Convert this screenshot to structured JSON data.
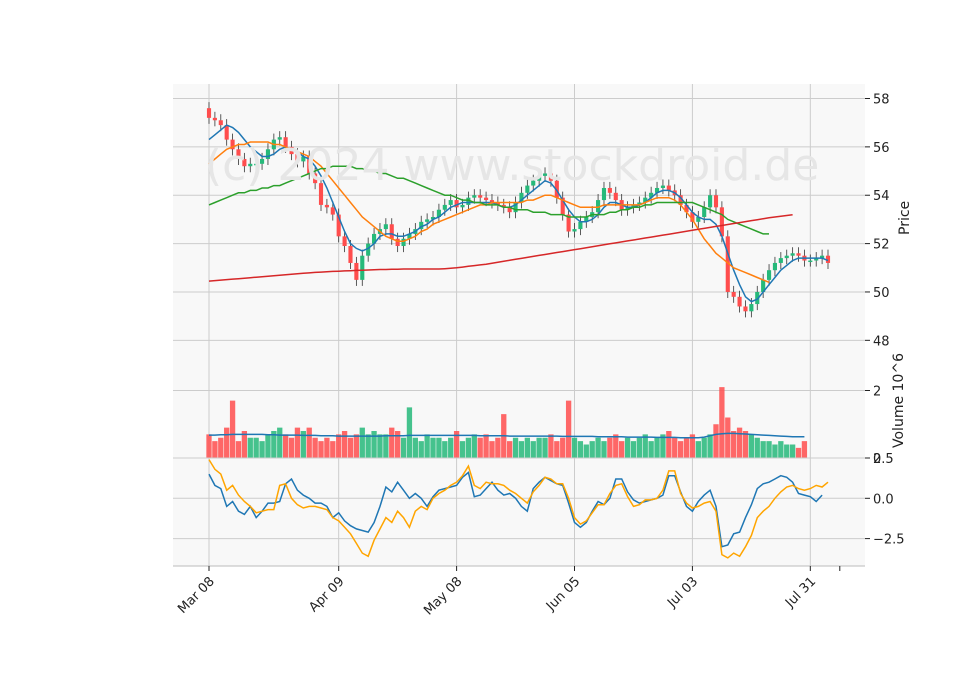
{
  "watermark": "(c) 2024 www.stockdroid.de",
  "colors": {
    "up": "#26b97a",
    "down": "#ff4d4d",
    "sma10": "#1f77b4",
    "sma20": "#ff7f0e",
    "sma50": "#2ca02c",
    "sma200": "#d62728",
    "osc_a": "#1f77b4",
    "osc_b": "#ffa500",
    "grid": "#cccccc",
    "panel_bg": "#f8f8f8"
  },
  "chart_data": [
    {
      "type": "candlestick",
      "title": "",
      "ylabel": "Price",
      "ylim": [
        47.6,
        58.6
      ],
      "yticks": [
        "48",
        "50",
        "52",
        "54",
        "56",
        "58"
      ],
      "x_tick_labels": [
        "Mar 08",
        "Apr 09",
        "May 08",
        "Jun 05",
        "Jul 03",
        "Jul 31"
      ],
      "x_tick_index": [
        0,
        22,
        42,
        62,
        82,
        102
      ],
      "grid": true,
      "ohlc_open": [
        57.6,
        57.2,
        57.1,
        56.9,
        56.3,
        55.9,
        55.5,
        55.2,
        55.3,
        55.3,
        55.5,
        55.9,
        56.3,
        56.4,
        56.0,
        55.7,
        55.4,
        55.6,
        54.9,
        54.5,
        53.6,
        53.5,
        53.2,
        52.3,
        51.9,
        51.2,
        50.5,
        51.5,
        52.0,
        52.4,
        52.6,
        52.8,
        52.2,
        51.9,
        52.2,
        52.4,
        52.6,
        52.9,
        53.0,
        53.1,
        53.4,
        53.6,
        53.8,
        53.5,
        53.6,
        53.9,
        54.0,
        53.9,
        53.8,
        53.7,
        53.6,
        53.5,
        53.3,
        53.7,
        54.1,
        54.4,
        54.6,
        54.8,
        54.9,
        54.6,
        53.9,
        53.2,
        52.5,
        52.6,
        52.9,
        53.1,
        53.3,
        53.8,
        54.3,
        54.1,
        53.8,
        53.4,
        53.5,
        53.6,
        53.7,
        53.9,
        54.1,
        54.3,
        54.4,
        54.2,
        54.0,
        53.6,
        53.3,
        52.9,
        53.1,
        53.5,
        54.0,
        53.5,
        52.3,
        50.0,
        49.8,
        49.4,
        49.2,
        49.5,
        50.0,
        50.5,
        50.9,
        51.2,
        51.4,
        51.5,
        51.6,
        51.5,
        51.3,
        51.3,
        51.4,
        51.5
      ],
      "ohlc_close": [
        57.2,
        57.1,
        56.9,
        56.3,
        55.9,
        55.5,
        55.2,
        55.3,
        55.3,
        55.5,
        55.9,
        56.3,
        56.4,
        56.0,
        55.7,
        55.4,
        55.6,
        54.9,
        54.5,
        53.6,
        53.5,
        53.2,
        52.3,
        51.9,
        51.2,
        50.5,
        51.5,
        52.0,
        52.4,
        52.6,
        52.8,
        52.2,
        51.9,
        52.2,
        52.4,
        52.6,
        52.9,
        53.0,
        53.1,
        53.4,
        53.6,
        53.8,
        53.5,
        53.6,
        53.9,
        54.0,
        53.9,
        53.8,
        53.7,
        53.6,
        53.5,
        53.3,
        53.7,
        54.1,
        54.4,
        54.6,
        54.8,
        54.9,
        54.6,
        53.9,
        53.2,
        52.5,
        52.6,
        52.9,
        53.1,
        53.3,
        53.8,
        54.3,
        54.1,
        53.8,
        53.4,
        53.5,
        53.6,
        53.7,
        53.9,
        54.1,
        54.3,
        54.4,
        54.2,
        54.0,
        53.6,
        53.3,
        52.9,
        53.1,
        53.5,
        54.0,
        53.5,
        52.3,
        50.0,
        49.8,
        49.4,
        49.2,
        49.5,
        50.0,
        50.5,
        50.9,
        51.2,
        51.4,
        51.5,
        51.6,
        51.5,
        51.3,
        51.3,
        51.4,
        51.5,
        51.2
      ],
      "series": [
        {
          "name": "SMA 10",
          "values": [
            56.3,
            56.5,
            56.7,
            56.9,
            56.8,
            56.6,
            56.3,
            56.0,
            55.8,
            55.6,
            55.6,
            55.7,
            55.9,
            56.0,
            55.9,
            55.8,
            55.6,
            55.5,
            55.2,
            54.8,
            54.3,
            53.7,
            53.1,
            52.5,
            52.0,
            51.8,
            51.7,
            51.8,
            52.0,
            52.3,
            52.4,
            52.4,
            52.3,
            52.3,
            52.4,
            52.5,
            52.7,
            52.8,
            53.0,
            53.1,
            53.3,
            53.5,
            53.6,
            53.7,
            53.7,
            53.7,
            53.7,
            53.7,
            53.7,
            53.6,
            53.5,
            53.5,
            53.6,
            53.8,
            54.0,
            54.2,
            54.4,
            54.6,
            54.5,
            54.2,
            53.8,
            53.4,
            53.1,
            52.9,
            52.9,
            53.0,
            53.2,
            53.5,
            53.7,
            53.7,
            53.6,
            53.5,
            53.5,
            53.6,
            53.7,
            53.9,
            54.1,
            54.2,
            54.2,
            54.1,
            53.9,
            53.6,
            53.3,
            53.1,
            53.0,
            53.0,
            52.8,
            52.3,
            51.6,
            50.9,
            50.3,
            49.8,
            49.6,
            49.7,
            50.0,
            50.3,
            50.6,
            50.9,
            51.1,
            51.3,
            51.4,
            51.4,
            51.4,
            51.4,
            51.4,
            51.3
          ]
        },
        {
          "name": "SMA 20",
          "values": [
            55.3,
            55.5,
            55.7,
            55.9,
            56.0,
            56.1,
            56.1,
            56.2,
            56.2,
            56.2,
            56.2,
            56.1,
            56.1,
            56.0,
            55.9,
            55.8,
            55.7,
            55.6,
            55.4,
            55.2,
            54.9,
            54.6,
            54.3,
            54.0,
            53.7,
            53.4,
            53.1,
            52.9,
            52.7,
            52.5,
            52.3,
            52.2,
            52.1,
            52.1,
            52.2,
            52.3,
            52.5,
            52.6,
            52.8,
            52.9,
            53.0,
            53.1,
            53.2,
            53.3,
            53.4,
            53.5,
            53.6,
            53.6,
            53.7,
            53.7,
            53.7,
            53.7,
            53.7,
            53.7,
            53.8,
            53.8,
            53.9,
            54.0,
            54.0,
            53.9,
            53.8,
            53.7,
            53.6,
            53.5,
            53.5,
            53.5,
            53.5,
            53.6,
            53.6,
            53.6,
            53.6,
            53.6,
            53.6,
            53.6,
            53.7,
            53.8,
            53.9,
            53.9,
            53.9,
            53.8,
            53.6,
            53.3,
            53.0,
            52.6,
            52.2,
            51.9,
            51.6,
            51.4,
            51.2,
            51.0,
            50.9,
            50.8,
            50.7,
            50.6,
            50.5,
            50.4
          ]
        },
        {
          "name": "SMA 50",
          "values": [
            53.6,
            53.7,
            53.8,
            53.9,
            54.0,
            54.1,
            54.1,
            54.2,
            54.2,
            54.3,
            54.3,
            54.4,
            54.4,
            54.5,
            54.6,
            54.7,
            54.8,
            54.9,
            55.0,
            55.1,
            55.1,
            55.2,
            55.2,
            55.2,
            55.2,
            55.1,
            55.1,
            55.0,
            55.0,
            54.9,
            54.9,
            54.8,
            54.7,
            54.7,
            54.6,
            54.5,
            54.4,
            54.3,
            54.2,
            54.1,
            54.0,
            54.0,
            53.9,
            53.8,
            53.8,
            53.7,
            53.7,
            53.6,
            53.6,
            53.6,
            53.5,
            53.5,
            53.4,
            53.4,
            53.4,
            53.3,
            53.3,
            53.3,
            53.2,
            53.2,
            53.2,
            53.1,
            53.1,
            53.1,
            53.1,
            53.2,
            53.2,
            53.2,
            53.3,
            53.3,
            53.4,
            53.4,
            53.5,
            53.5,
            53.6,
            53.6,
            53.7,
            53.7,
            53.7,
            53.7,
            53.7,
            53.7,
            53.7,
            53.6,
            53.5,
            53.4,
            53.3,
            53.2,
            53.0,
            52.9,
            52.8,
            52.7,
            52.6,
            52.5,
            52.4,
            52.4
          ]
        },
        {
          "name": "SMA 200",
          "values": [
            50.45,
            50.47,
            50.49,
            50.51,
            50.53,
            50.55,
            50.57,
            50.59,
            50.61,
            50.63,
            50.65,
            50.67,
            50.69,
            50.71,
            50.73,
            50.75,
            50.77,
            50.79,
            50.81,
            50.82,
            50.84,
            50.85,
            50.86,
            50.87,
            50.88,
            50.89,
            50.9,
            50.91,
            50.92,
            50.93,
            50.93,
            50.94,
            50.94,
            50.95,
            50.95,
            50.95,
            50.95,
            50.95,
            50.95,
            50.95,
            50.96,
            50.98,
            51.0,
            51.03,
            51.06,
            51.09,
            51.12,
            51.15,
            51.19,
            51.23,
            51.27,
            51.31,
            51.35,
            51.39,
            51.43,
            51.47,
            51.51,
            51.55,
            51.59,
            51.63,
            51.67,
            51.71,
            51.75,
            51.79,
            51.83,
            51.87,
            51.91,
            51.95,
            51.99,
            52.03,
            52.07,
            52.11,
            52.15,
            52.19,
            52.23,
            52.27,
            52.31,
            52.35,
            52.39,
            52.43,
            52.47,
            52.51,
            52.55,
            52.59,
            52.63,
            52.67,
            52.71,
            52.75,
            52.79,
            52.83,
            52.87,
            52.91,
            52.95,
            52.99,
            53.03,
            53.07,
            53.1,
            53.13,
            53.16,
            53.19
          ]
        }
      ]
    },
    {
      "type": "bar",
      "ylabel": "Volume  10^6",
      "ylim": [
        0,
        3.2
      ],
      "yticks": [
        "0",
        "2"
      ],
      "values": [
        0.7,
        0.5,
        0.6,
        0.9,
        1.7,
        0.5,
        0.8,
        0.6,
        0.6,
        0.5,
        0.7,
        0.8,
        0.9,
        0.7,
        0.6,
        0.9,
        0.8,
        0.9,
        0.6,
        0.5,
        0.6,
        0.5,
        0.7,
        0.8,
        0.6,
        0.7,
        0.9,
        0.7,
        0.8,
        0.7,
        0.7,
        0.9,
        0.8,
        0.6,
        1.5,
        0.6,
        0.5,
        0.7,
        0.6,
        0.6,
        0.5,
        0.6,
        0.8,
        0.5,
        0.6,
        0.7,
        0.6,
        0.7,
        0.5,
        0.6,
        1.3,
        0.5,
        0.6,
        0.5,
        0.6,
        0.5,
        0.6,
        0.6,
        0.7,
        0.5,
        0.6,
        1.7,
        0.6,
        0.5,
        0.4,
        0.5,
        0.6,
        0.5,
        0.6,
        0.7,
        0.5,
        0.6,
        0.5,
        0.6,
        0.7,
        0.5,
        0.6,
        0.7,
        0.8,
        0.6,
        0.5,
        0.6,
        0.7,
        0.5,
        0.6,
        0.7,
        1.0,
        2.1,
        1.2,
        0.8,
        0.9,
        0.8,
        0.7,
        0.6,
        0.5,
        0.5,
        0.4,
        0.5,
        0.4,
        0.4,
        0.3,
        0.5
      ],
      "series": [
        {
          "name": "",
          "values": [
            0.68,
            0.68,
            0.69,
            0.69,
            0.7,
            0.7,
            0.7,
            0.7,
            0.7,
            0.7,
            0.69,
            0.69,
            0.68,
            0.68,
            0.68,
            0.68,
            0.67,
            0.67,
            0.67,
            0.66,
            0.66,
            0.66,
            0.65,
            0.65,
            0.65,
            0.65,
            0.65,
            0.65,
            0.65,
            0.65,
            0.66,
            0.66,
            0.66,
            0.66,
            0.67,
            0.67,
            0.67,
            0.67,
            0.67,
            0.67,
            0.67,
            0.67,
            0.67,
            0.67,
            0.67,
            0.67,
            0.66,
            0.66,
            0.66,
            0.66,
            0.66,
            0.65,
            0.65,
            0.65,
            0.65,
            0.65,
            0.65,
            0.65,
            0.65,
            0.65,
            0.64,
            0.64,
            0.64,
            0.64,
            0.64,
            0.64,
            0.63,
            0.63,
            0.63,
            0.63,
            0.63,
            0.62,
            0.62,
            0.62,
            0.62,
            0.62,
            0.61,
            0.61,
            0.61,
            0.61,
            0.6,
            0.6,
            0.6,
            0.6,
            0.62,
            0.66,
            0.7,
            0.72,
            0.73,
            0.73,
            0.72,
            0.71,
            0.7,
            0.69,
            0.68,
            0.67,
            0.66,
            0.65,
            0.64,
            0.63,
            0.63,
            0.63
          ]
        }
      ]
    },
    {
      "type": "line",
      "ylabel": "",
      "ylim": [
        -4.2,
        2.5
      ],
      "yticks": [
        "2.5",
        "0.0",
        "−2.5"
      ],
      "ytick_values": [
        2.5,
        0.0,
        -2.5
      ],
      "series": [
        {
          "name": "",
          "values": [
            1.5,
            0.8,
            0.6,
            -0.5,
            -0.2,
            -0.8,
            -1.0,
            -0.5,
            -1.2,
            -0.8,
            -0.3,
            -0.3,
            -0.2,
            0.9,
            1.2,
            0.5,
            0.2,
            0.0,
            -0.3,
            -0.3,
            -0.5,
            -1.2,
            -0.9,
            -1.4,
            -1.7,
            -1.9,
            -2.0,
            -2.1,
            -1.5,
            -0.5,
            0.7,
            0.4,
            1.0,
            0.5,
            0.0,
            0.3,
            0.0,
            -0.5,
            0.1,
            0.5,
            0.6,
            0.7,
            0.8,
            1.3,
            1.6,
            0.1,
            0.2,
            0.6,
            1.0,
            0.5,
            0.2,
            0.3,
            0.0,
            -0.5,
            -0.8,
            0.6,
            1.0,
            1.3,
            1.1,
            0.9,
            0.8,
            -0.3,
            -1.5,
            -1.8,
            -1.5,
            -0.8,
            -0.2,
            -0.4,
            0.0,
            1.2,
            1.2,
            0.4,
            -0.1,
            -0.3,
            -0.2,
            -0.1,
            0.0,
            0.2,
            1.4,
            1.4,
            0.4,
            -0.5,
            -0.8,
            -0.2,
            0.2,
            0.5,
            -0.5,
            -3.0,
            -2.9,
            -2.2,
            -2.1,
            -1.2,
            -0.4,
            0.6,
            0.9,
            1.0,
            1.2,
            1.4,
            1.3,
            1.0,
            0.3,
            0.2,
            0.1,
            -0.2,
            0.2
          ]
        },
        {
          "name": "",
          "values": [
            2.4,
            1.8,
            1.5,
            0.5,
            0.8,
            0.2,
            -0.2,
            -0.5,
            -0.9,
            -0.8,
            -0.7,
            -0.7,
            0.8,
            0.9,
            0.0,
            -0.4,
            -0.6,
            -0.5,
            -0.5,
            -0.6,
            -0.7,
            -1.2,
            -1.4,
            -1.8,
            -2.2,
            -2.8,
            -3.4,
            -3.6,
            -2.6,
            -1.9,
            -1.2,
            -1.5,
            -0.8,
            -1.2,
            -1.8,
            -0.8,
            -0.5,
            -0.7,
            0.0,
            0.3,
            0.5,
            0.8,
            1.0,
            1.4,
            2.0,
            0.8,
            0.6,
            1.0,
            0.9,
            0.9,
            0.8,
            0.5,
            0.3,
            0.0,
            -0.3,
            0.4,
            0.8,
            1.3,
            1.2,
            0.9,
            0.9,
            0.0,
            -1.2,
            -1.6,
            -1.4,
            -0.9,
            -0.4,
            -0.4,
            0.3,
            0.8,
            0.9,
            0.1,
            -0.5,
            -0.4,
            -0.1,
            -0.1,
            0.0,
            0.5,
            1.7,
            1.7,
            0.3,
            -0.3,
            -0.6,
            -0.5,
            -0.3,
            -0.2,
            -0.8,
            -3.5,
            -3.7,
            -3.4,
            -3.6,
            -3.0,
            -2.3,
            -1.2,
            -0.8,
            -0.5,
            0.0,
            0.4,
            0.7,
            0.8,
            0.6,
            0.5,
            0.6,
            0.8,
            0.7,
            1.0
          ]
        }
      ]
    }
  ]
}
